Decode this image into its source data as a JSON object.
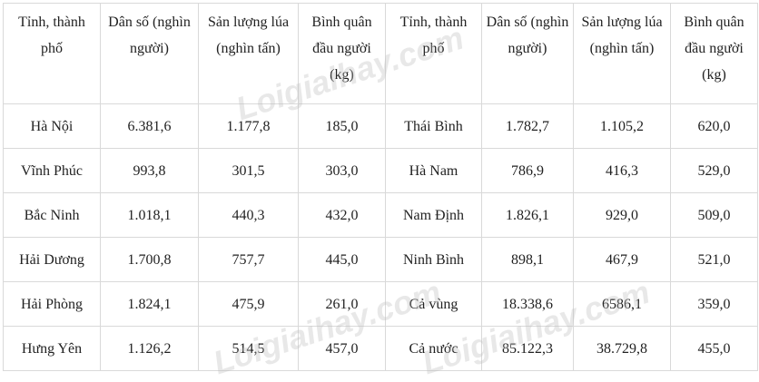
{
  "headers": [
    "Tỉnh, thành phố",
    "Dân số (nghìn người)",
    "Sản lượng lúa (nghìn tấn)",
    "Bình quân đầu người (kg)",
    "Tỉnh, thành phố",
    "Dân số (nghìn người)",
    "Sản lượng lúa (nghìn tấn)",
    "Bình quân đầu người (kg)"
  ],
  "rows": [
    [
      "Hà Nội",
      "6.381,6",
      "1.177,8",
      "185,0",
      "Thái Bình",
      "1.782,7",
      "1.105,2",
      "620,0"
    ],
    [
      "Vĩnh Phúc",
      "993,8",
      "301,5",
      "303,0",
      "Hà Nam",
      "786,9",
      "416,3",
      "529,0"
    ],
    [
      "Bắc Ninh",
      "1.018,1",
      "440,3",
      "432,0",
      "Nam Định",
      "1.826,1",
      "929,0",
      "509,0"
    ],
    [
      "Hải Dương",
      "1.700,8",
      "757,7",
      "445,0",
      "Ninh Bình",
      "898,1",
      "467,9",
      "521,0"
    ],
    [
      "Hải Phòng",
      "1.824,1",
      "475,9",
      "261,0",
      "Cả vùng",
      "18.338,6",
      "6586,1",
      "359,0"
    ],
    [
      "Hưng Yên",
      "1.126,2",
      "514,5",
      "457,0",
      "Cả nước",
      "85.122,3",
      "38.729,8",
      "455,0"
    ]
  ],
  "watermark": "Loigiaihay.com"
}
